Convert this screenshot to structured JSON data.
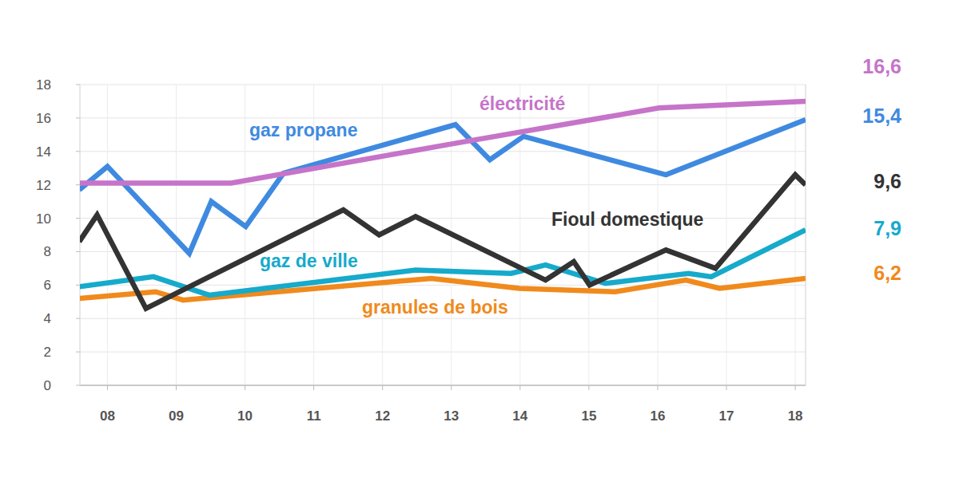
{
  "chart_data": {
    "type": "line",
    "xlim": [
      2008.1,
      2018.65
    ],
    "xticks": [
      {
        "value": 2008.5,
        "label": "08"
      },
      {
        "value": 2009.5,
        "label": "09"
      },
      {
        "value": 2010.5,
        "label": "10"
      },
      {
        "value": 2011.5,
        "label": "11"
      },
      {
        "value": 2012.5,
        "label": "12"
      },
      {
        "value": 2013.5,
        "label": "13"
      },
      {
        "value": 2014.5,
        "label": "14"
      },
      {
        "value": 2015.5,
        "label": "15"
      },
      {
        "value": 2016.5,
        "label": "16"
      },
      {
        "value": 2017.5,
        "label": "17"
      },
      {
        "value": 2018.5,
        "label": "18"
      }
    ],
    "ylim": [
      0,
      18
    ],
    "yticks": [
      0,
      2,
      4,
      6,
      8,
      10,
      12,
      14,
      16,
      18
    ],
    "grid": true,
    "series": [
      {
        "name": "électricité",
        "color": "#c674c9",
        "annotation": "16,6",
        "x": [
          2008.09,
          2010.3,
          2013.44,
          2016.52,
          2018.65
        ],
        "values": [
          12.1,
          12.1,
          14.4,
          16.6,
          17.0
        ]
      },
      {
        "name": "gaz propane",
        "color": "#3f8ae0",
        "annotation": "15,4",
        "x": [
          2008.09,
          2008.5,
          2009.69,
          2010.01,
          2010.51,
          2011.06,
          2013.56,
          2014.06,
          2014.55,
          2016.62,
          2018.65
        ],
        "values": [
          11.7,
          13.1,
          7.9,
          11.0,
          9.5,
          12.7,
          15.6,
          13.5,
          14.9,
          12.6,
          15.9
        ]
      },
      {
        "name": "Fioul domestique",
        "color": "#333333",
        "annotation": "9,6",
        "x": [
          2008.09,
          2008.35,
          2009.06,
          2011.93,
          2012.45,
          2012.98,
          2014.87,
          2015.28,
          2015.51,
          2016.62,
          2017.34,
          2018.5,
          2018.65
        ],
        "values": [
          8.6,
          10.2,
          4.6,
          10.5,
          9.0,
          10.1,
          6.3,
          7.4,
          6.0,
          8.1,
          7.0,
          12.6,
          12.0
        ]
      },
      {
        "name": "gaz de ville",
        "color": "#16aacb",
        "annotation": "7,9",
        "x": [
          2008.09,
          2009.17,
          2009.98,
          2012.98,
          2014.37,
          2014.87,
          2015.74,
          2016.95,
          2017.28,
          2018.65
        ],
        "values": [
          5.9,
          6.5,
          5.4,
          6.9,
          6.7,
          7.2,
          6.1,
          6.7,
          6.5,
          9.3
        ]
      },
      {
        "name": "granules de bois",
        "color": "#f08a1c",
        "annotation": "6,2",
        "x": [
          2008.09,
          2009.2,
          2009.6,
          2013.21,
          2014.49,
          2015.88,
          2016.91,
          2017.4,
          2018.65
        ],
        "values": [
          5.2,
          5.6,
          5.1,
          6.4,
          5.8,
          5.6,
          6.3,
          5.8,
          6.4
        ]
      }
    ]
  }
}
